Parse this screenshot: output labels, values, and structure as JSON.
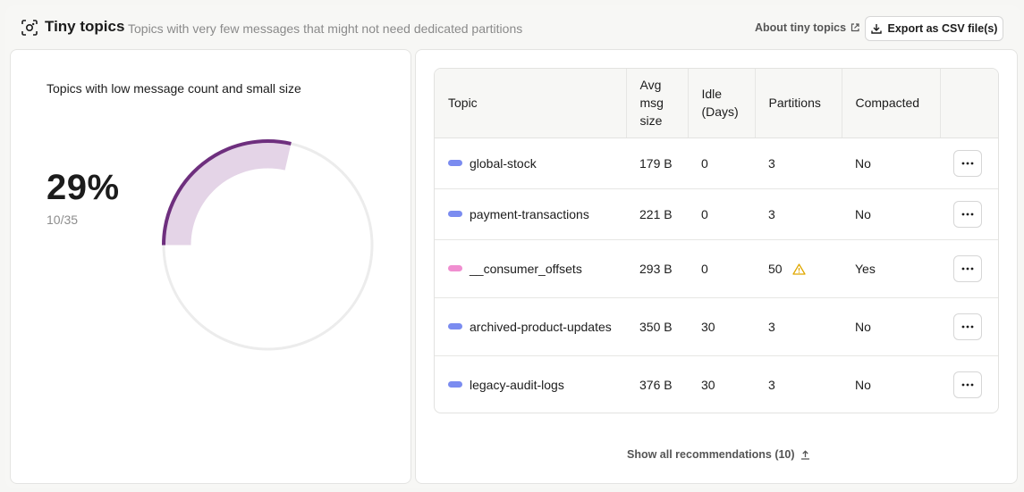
{
  "header": {
    "title": "Tiny topics",
    "subtitle": "Topics with very few messages that might not need dedicated partitions",
    "about_link": "About tiny topics",
    "export_label": "Export as CSV file(s)"
  },
  "summary": {
    "title": "Topics with low message count and small size",
    "percent_label": "29%",
    "ratio_label": "10/35",
    "fraction": 0.2857,
    "accent_color": "#6e2f7e",
    "fill_color": "#e4d4e7"
  },
  "table": {
    "columns": [
      "Topic",
      "Avg msg size",
      "Idle (Days)",
      "Partitions",
      "Compacted",
      ""
    ],
    "rows": [
      {
        "topic": "global-stock",
        "avg_size": "179 B",
        "idle": "0",
        "partitions": "3",
        "warning": false,
        "compacted": "No",
        "color": "#7b8cf0"
      },
      {
        "topic": "payment-transactions",
        "avg_size": "221 B",
        "idle": "0",
        "partitions": "3",
        "warning": false,
        "compacted": "No",
        "color": "#7b8cf0"
      },
      {
        "topic": "__consumer_offsets",
        "avg_size": "293 B",
        "idle": "0",
        "partitions": "50",
        "warning": true,
        "compacted": "Yes",
        "color": "#f08ed0"
      },
      {
        "topic": "archived-product-updates",
        "avg_size": "350 B",
        "idle": "30",
        "partitions": "3",
        "warning": false,
        "compacted": "No",
        "color": "#7b8cf0"
      },
      {
        "topic": "legacy-audit-logs",
        "avg_size": "376 B",
        "idle": "30",
        "partitions": "3",
        "warning": false,
        "compacted": "No",
        "color": "#7b8cf0"
      }
    ]
  },
  "footer": {
    "show_all": "Show all recommendations (10)"
  }
}
